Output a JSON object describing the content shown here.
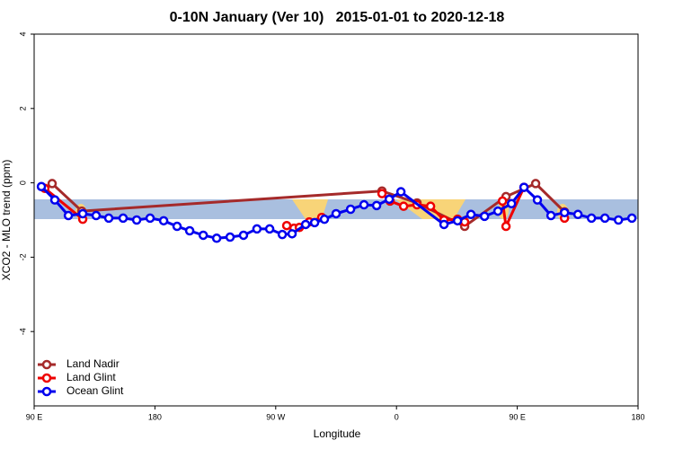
{
  "chart_data": {
    "type": "line",
    "title": "0-10N January (Ver 10)   2015-01-01 to 2020-12-18",
    "x_label": "Longitude",
    "y_label": "XCO2 - MLO trend (ppm)",
    "xlim": [
      90,
      540
    ],
    "ylim": [
      -6,
      4
    ],
    "xticks": [
      {
        "value": 90,
        "label": "90 E"
      },
      {
        "value": 180,
        "label": "180"
      },
      {
        "value": 270,
        "label": "90 W"
      },
      {
        "value": 360,
        "label": "0"
      },
      {
        "value": 450,
        "label": "90 E"
      },
      {
        "value": 540,
        "label": "180"
      }
    ],
    "yticks": [
      -4,
      -2,
      0,
      2,
      4
    ],
    "legend_position": "bottom-left",
    "series": [
      {
        "name": "Land Nadir",
        "color": "#a52a2a",
        "x": [
          103.4,
          125.5,
          349.2,
          375.3,
          410.8,
          441.6,
          463.7,
          485.2
        ],
        "values": [
          -0.02,
          -0.76,
          -0.22,
          -0.54,
          -1.17,
          -0.37,
          -0.02,
          -0.78
        ]
      },
      {
        "name": "Land Glint",
        "color": "#ee0000",
        "x": [
          98,
          126.2,
          null,
          278.2,
          283.6,
          287.6,
          295,
          304.3,
          null,
          349.2,
          355.2,
          365.3,
          375.3,
          385.4,
          395.4,
          405.5,
          410.8,
          null,
          439,
          441.6,
          455,
          null,
          485.2
        ],
        "values": [
          -0.15,
          -0.98,
          null,
          -1.15,
          -1.22,
          -1.2,
          -1.05,
          -0.93,
          null,
          -0.29,
          -0.49,
          -0.63,
          -0.59,
          -0.63,
          -1.0,
          -0.98,
          -1.05,
          null,
          -0.49,
          -1.17,
          -0.12,
          null,
          -0.95
        ]
      },
      {
        "name": "Ocean Glint",
        "color": "#0000ee",
        "x": [
          95.4,
          105.4,
          115.5,
          126.2,
          136.2,
          145.6,
          156.3,
          166.4,
          176.4,
          186.5,
          196.5,
          205.9,
          216,
          226,
          236,
          246,
          256,
          265.5,
          274.9,
          282.2,
          292.3,
          299,
          306.3,
          315,
          325.8,
          335.8,
          345.2,
          354.6,
          363.3,
          395.4,
          405.5,
          415.5,
          425.6,
          435.6,
          445.7,
          455,
          465,
          475.1,
          485.2,
          495.2,
          505.3,
          515.3,
          525.4,
          535.4
        ],
        "values": [
          -0.1,
          -0.46,
          -0.88,
          -0.83,
          -0.88,
          -0.95,
          -0.95,
          -1.0,
          -0.95,
          -1.02,
          -1.17,
          -1.29,
          -1.41,
          -1.49,
          -1.46,
          -1.41,
          -1.24,
          -1.24,
          -1.39,
          -1.37,
          -1.12,
          -1.07,
          -0.98,
          -0.83,
          -0.71,
          -0.59,
          -0.61,
          -0.44,
          -0.24,
          -1.12,
          -1.02,
          -0.85,
          -0.9,
          -0.76,
          -0.56,
          -0.12,
          -0.46,
          -0.88,
          -0.8,
          -0.85,
          -0.95,
          -0.95,
          -1.0,
          -0.95
        ]
      }
    ]
  }
}
